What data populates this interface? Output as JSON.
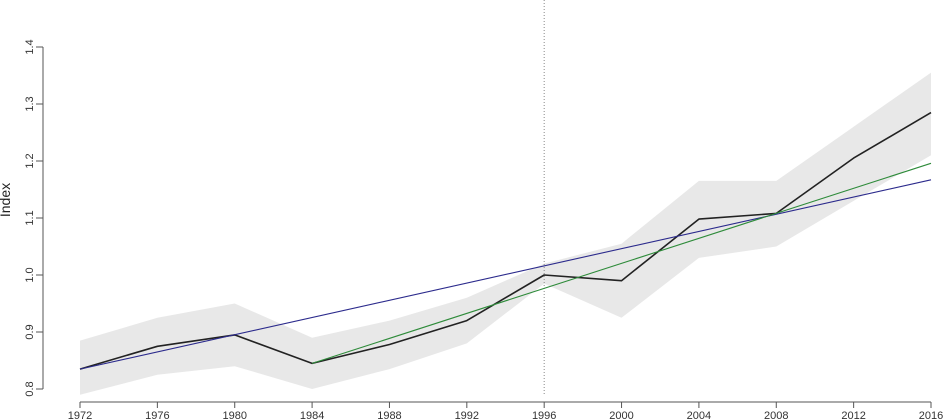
{
  "chart_data": {
    "type": "line",
    "title": "",
    "xlabel": "",
    "ylabel": "Index",
    "xlim": [
      1972,
      2016
    ],
    "ylim": [
      0.8,
      1.4
    ],
    "x_ticks": [
      "1972",
      "1976",
      "1980",
      "1984",
      "1988",
      "1992",
      "1996",
      "2000",
      "2004",
      "2008",
      "2012",
      "2016"
    ],
    "y_ticks": [
      "0.8",
      "0.9",
      "1.0",
      "1.1",
      "1.2",
      "1.3",
      "1.4"
    ],
    "grid": false,
    "reference_line_x": 1996,
    "band": {
      "x": [
        1972,
        1976,
        1980,
        1984,
        1988,
        1992,
        1996,
        2000,
        2004,
        2008,
        2012,
        2016
      ],
      "lower": [
        0.79,
        0.825,
        0.84,
        0.8,
        0.835,
        0.88,
        0.985,
        0.925,
        1.03,
        1.05,
        1.13,
        1.21
      ],
      "upper": [
        0.885,
        0.925,
        0.95,
        0.89,
        0.92,
        0.96,
        1.02,
        1.055,
        1.165,
        1.165,
        1.26,
        1.355
      ]
    },
    "series": [
      {
        "x": [
          1972,
          1976,
          1980,
          1984,
          1988,
          1992,
          1996,
          2000,
          2004,
          2008,
          2012,
          2016
        ],
        "values": [
          0.835,
          0.875,
          0.895,
          0.845,
          0.878,
          0.92,
          1.0,
          0.99,
          1.098,
          1.108,
          1.205,
          1.285
        ],
        "color": "#222222"
      },
      {
        "x": [
          1972,
          2016
        ],
        "values": [
          0.835,
          1.167
        ],
        "color": "#2b2a8c"
      },
      {
        "x": [
          1984,
          2016
        ],
        "values": [
          0.845,
          1.196
        ],
        "color": "#2e8b3a"
      }
    ],
    "colors": {
      "band": "#e8e8e8",
      "axis": "#555555",
      "reference_line": "#888888"
    }
  }
}
